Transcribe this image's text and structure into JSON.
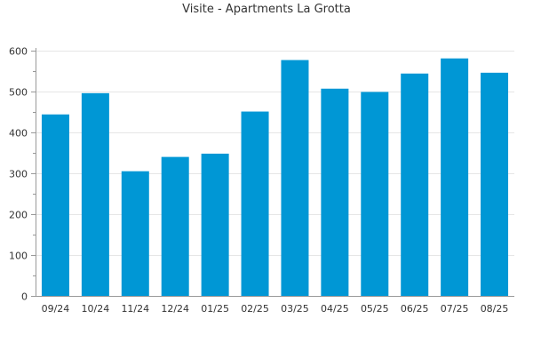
{
  "chart_data": {
    "type": "bar",
    "title": "Visite - Apartments La Grotta",
    "xlabel": "",
    "ylabel": "",
    "categories": [
      "09/24",
      "10/24",
      "11/24",
      "12/24",
      "01/25",
      "02/25",
      "03/25",
      "04/25",
      "05/25",
      "06/25",
      "07/25",
      "08/25"
    ],
    "values": [
      444,
      496,
      305,
      340,
      348,
      451,
      577,
      507,
      499,
      544,
      581,
      546
    ],
    "ylim": [
      0,
      600
    ],
    "yticks": [
      0,
      100,
      200,
      300,
      400,
      500,
      600
    ],
    "grid": true,
    "legend": "none",
    "colors": {
      "bar": "#0097d5",
      "grid": "#e6e6e6",
      "axis": "#999999",
      "text": "#333333"
    }
  }
}
